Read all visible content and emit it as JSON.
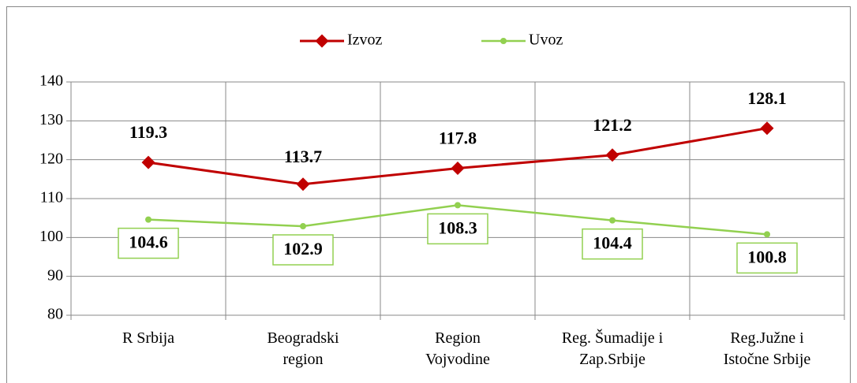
{
  "chart_data": {
    "type": "line",
    "categories": [
      "R Srbija",
      "Beogradski region",
      "Region Vojvodine",
      "Reg. Šumadije i Zap.Srbije",
      "Reg.Južne i Istočne Srbije"
    ],
    "series": [
      {
        "name": "Izvoz",
        "color": "#c00000",
        "values": [
          119.3,
          113.7,
          117.8,
          121.2,
          128.1
        ]
      },
      {
        "name": "Uvoz",
        "color": "#92d050",
        "values": [
          104.6,
          102.9,
          108.3,
          104.4,
          100.8
        ]
      }
    ],
    "ylim": [
      80,
      140
    ],
    "yticks": [
      80,
      90,
      100,
      110,
      120,
      130,
      140
    ],
    "grid": true,
    "legend": "top"
  }
}
